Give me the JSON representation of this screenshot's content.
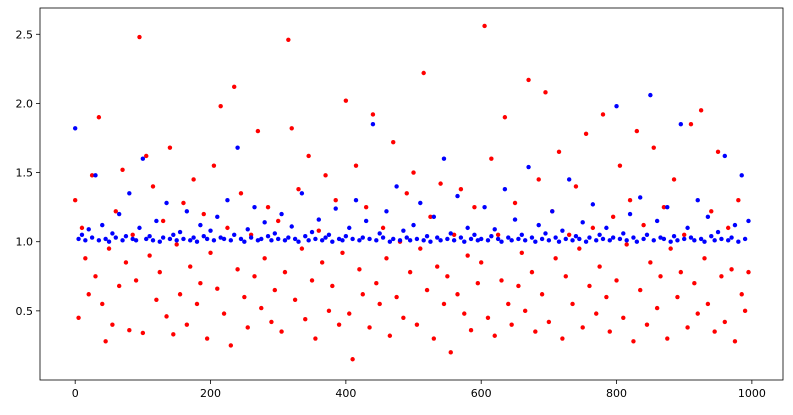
{
  "chart_data": {
    "type": "scatter",
    "xlim": [
      -52,
      1046
    ],
    "ylim": [
      0.0,
      2.69
    ],
    "xticks": [
      0,
      200,
      400,
      600,
      800,
      1000
    ],
    "yticks": [
      0.5,
      {
        "value": 1,
        "label": "1.0"
      },
      1.5,
      {
        "value": 2,
        "label": "2.0"
      },
      2.5
    ],
    "x": [
      0,
      5,
      10,
      15,
      20,
      25,
      30,
      35,
      40,
      45,
      50,
      55,
      60,
      65,
      70,
      75,
      80,
      85,
      90,
      95,
      100,
      105,
      110,
      115,
      120,
      125,
      130,
      135,
      140,
      145,
      150,
      155,
      160,
      165,
      170,
      175,
      180,
      185,
      190,
      195,
      200,
      205,
      210,
      215,
      220,
      225,
      230,
      235,
      240,
      245,
      250,
      255,
      260,
      265,
      270,
      275,
      280,
      285,
      290,
      295,
      300,
      305,
      310,
      315,
      320,
      325,
      330,
      335,
      340,
      345,
      350,
      355,
      360,
      365,
      370,
      375,
      380,
      385,
      390,
      395,
      400,
      405,
      410,
      415,
      420,
      425,
      430,
      435,
      440,
      445,
      450,
      455,
      460,
      465,
      470,
      475,
      480,
      485,
      490,
      495,
      500,
      505,
      510,
      515,
      520,
      525,
      530,
      535,
      540,
      545,
      550,
      555,
      560,
      565,
      570,
      575,
      580,
      585,
      590,
      595,
      600,
      605,
      610,
      615,
      620,
      625,
      630,
      635,
      640,
      645,
      650,
      655,
      660,
      665,
      670,
      675,
      680,
      685,
      690,
      695,
      700,
      705,
      710,
      715,
      720,
      725,
      730,
      735,
      740,
      745,
      750,
      755,
      760,
      765,
      770,
      775,
      780,
      785,
      790,
      795,
      800,
      805,
      810,
      815,
      820,
      825,
      830,
      835,
      840,
      845,
      850,
      855,
      860,
      865,
      870,
      875,
      880,
      885,
      890,
      895,
      900,
      905,
      910,
      915,
      920,
      925,
      930,
      935,
      940,
      945,
      950,
      955,
      960,
      965,
      970,
      975,
      980,
      985,
      990,
      995
    ],
    "series": [
      {
        "color": "#ff0000",
        "values": [
          1.3,
          0.45,
          1.1,
          0.88,
          0.62,
          1.48,
          0.75,
          1.9,
          0.55,
          0.28,
          0.95,
          0.4,
          1.22,
          0.68,
          1.52,
          0.85,
          0.36,
          1.05,
          0.72,
          2.48,
          0.34,
          1.62,
          0.9,
          1.4,
          0.58,
          0.78,
          1.15,
          0.46,
          1.68,
          0.33,
          0.98,
          0.62,
          1.28,
          0.4,
          0.82,
          1.45,
          0.55,
          0.7,
          1.2,
          0.3,
          0.92,
          1.55,
          0.66,
          1.98,
          0.48,
          1.1,
          0.25,
          2.12,
          0.8,
          1.35,
          0.6,
          0.38,
          1.05,
          0.75,
          1.8,
          0.52,
          0.88,
          1.25,
          0.42,
          0.65,
          1.15,
          0.35,
          0.78,
          2.46,
          1.82,
          0.58,
          1.38,
          0.95,
          0.44,
          1.62,
          0.72,
          0.3,
          1.08,
          0.85,
          1.48,
          0.5,
          0.68,
          1.3,
          0.4,
          0.92,
          2.02,
          0.48,
          0.15,
          1.55,
          0.8,
          0.62,
          1.25,
          0.38,
          1.92,
          0.7,
          0.55,
          1.1,
          0.88,
          0.32,
          1.72,
          0.6,
          1.0,
          0.45,
          1.35,
          0.78,
          1.5,
          0.4,
          0.95,
          2.22,
          0.65,
          1.18,
          0.3,
          0.82,
          1.42,
          0.55,
          0.75,
          0.2,
          1.05,
          0.62,
          1.38,
          0.48,
          0.9,
          0.36,
          1.25,
          0.7,
          0.85,
          2.56,
          0.45,
          1.6,
          0.32,
          1.05,
          0.72,
          1.9,
          0.55,
          0.4,
          1.28,
          0.68,
          0.92,
          0.5,
          2.17,
          0.78,
          0.35,
          1.45,
          0.62,
          2.08,
          0.42,
          1.22,
          0.88,
          1.65,
          0.3,
          0.75,
          1.05,
          0.55,
          1.4,
          0.95,
          0.38,
          1.78,
          0.68,
          1.1,
          0.48,
          0.82,
          1.92,
          0.6,
          0.35,
          1.18,
          0.72,
          1.55,
          0.45,
          0.98,
          1.3,
          0.28,
          1.8,
          0.65,
          1.12,
          0.4,
          0.85,
          1.68,
          0.52,
          0.75,
          1.25,
          0.3,
          0.95,
          1.45,
          0.6,
          0.78,
          1.05,
          0.38,
          1.85,
          0.7,
          0.48,
          1.95,
          0.88,
          0.55,
          1.22,
          0.35,
          1.65,
          0.75,
          0.42,
          1.1,
          0.8,
          0.28,
          1.3,
          0.62,
          0.5,
          0.78
        ]
      },
      {
        "color": "#0000ff",
        "values": [
          1.82,
          1.02,
          1.05,
          1.01,
          1.09,
          1.03,
          1.48,
          1.01,
          1.12,
          1.02,
          1.0,
          1.06,
          1.03,
          1.2,
          1.01,
          1.04,
          1.35,
          1.02,
          1.01,
          1.1,
          1.6,
          1.02,
          1.04,
          1.01,
          1.15,
          1.0,
          1.03,
          1.28,
          1.02,
          1.05,
          1.01,
          1.07,
          1.02,
          1.22,
          1.01,
          1.03,
          1.0,
          1.12,
          1.04,
          1.02,
          1.08,
          1.01,
          1.18,
          1.03,
          1.02,
          1.3,
          1.01,
          1.05,
          1.68,
          1.02,
          1.0,
          1.09,
          1.03,
          1.25,
          1.01,
          1.02,
          1.14,
          1.04,
          1.01,
          1.06,
          1.02,
          1.2,
          1.01,
          1.03,
          1.11,
          1.02,
          1.0,
          1.35,
          1.04,
          1.01,
          1.07,
          1.02,
          1.16,
          1.01,
          1.03,
          1.05,
          1.0,
          1.24,
          1.02,
          1.01,
          1.04,
          1.1,
          1.02,
          1.3,
          1.01,
          1.03,
          1.15,
          1.02,
          1.85,
          1.01,
          1.06,
          1.03,
          1.22,
          1.0,
          1.02,
          1.4,
          1.01,
          1.08,
          1.03,
          1.01,
          1.12,
          1.02,
          1.28,
          1.01,
          1.04,
          1.0,
          1.18,
          1.03,
          1.01,
          1.6,
          1.02,
          1.06,
          1.01,
          1.33,
          1.03,
          1.0,
          1.1,
          1.02,
          1.05,
          1.01,
          1.02,
          1.25,
          1.01,
          1.04,
          1.09,
          1.02,
          1.0,
          1.38,
          1.03,
          1.01,
          1.16,
          1.02,
          1.05,
          1.01,
          1.54,
          1.03,
          1.0,
          1.12,
          1.02,
          1.06,
          1.01,
          1.22,
          1.03,
          1.0,
          1.08,
          1.02,
          1.45,
          1.01,
          1.04,
          1.02,
          1.14,
          1.0,
          1.03,
          1.27,
          1.01,
          1.05,
          1.02,
          1.1,
          1.01,
          1.03,
          1.98,
          1.02,
          1.06,
          1.01,
          1.2,
          1.03,
          1.0,
          1.32,
          1.02,
          1.05,
          2.06,
          1.01,
          1.15,
          1.03,
          1.02,
          1.25,
          1.0,
          1.04,
          1.01,
          1.85,
          1.02,
          1.1,
          1.03,
          1.01,
          1.3,
          1.02,
          1.0,
          1.18,
          1.04,
          1.01,
          1.07,
          1.02,
          1.62,
          1.01,
          1.03,
          1.12,
          1.0,
          1.48,
          1.02,
          1.15
        ]
      }
    ]
  }
}
